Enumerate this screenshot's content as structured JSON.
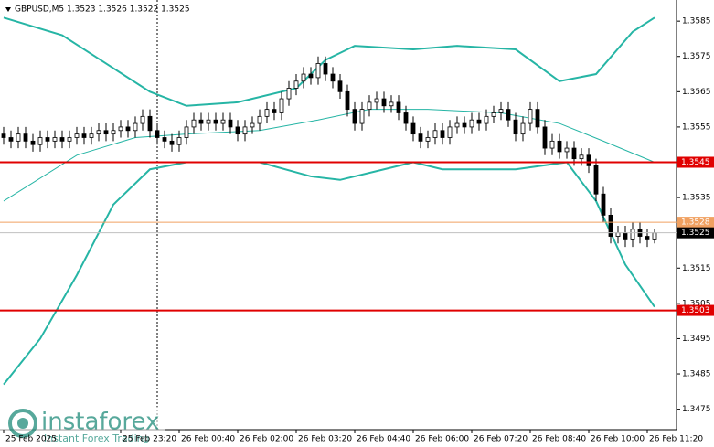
{
  "chart_data": {
    "type": "candlestick",
    "title": "GBPUSD,M5  1.3523 1.3526 1.3522 1.3525",
    "open": [
      1.3553,
      1.3552,
      1.3551,
      1.3553,
      1.3551,
      1.355,
      1.3552,
      1.3551,
      1.3552,
      1.3551,
      1.3552,
      1.3553,
      1.3552,
      1.3553,
      1.3554,
      1.3553,
      1.3554,
      1.3555,
      1.3554,
      1.3556,
      1.3558,
      1.3554,
      1.3552,
      1.3551,
      1.355,
      1.3552,
      1.3555,
      1.3557,
      1.3556,
      1.3557,
      1.3556,
      1.3557,
      1.3555,
      1.3553,
      1.3555,
      1.3556,
      1.3558,
      1.356,
      1.3559,
      1.3563,
      1.3566,
      1.3568,
      1.357,
      1.3569,
      1.3573,
      1.357,
      1.3568,
      1.3565,
      1.356,
      1.3556,
      1.356,
      1.3562,
      1.3563,
      1.3561,
      1.3562,
      1.3559,
      1.3556,
      1.3553,
      1.3551,
      1.3552,
      1.3554,
      1.3552,
      1.3555,
      1.3556,
      1.3555,
      1.3557,
      1.3556,
      1.3558,
      1.3559,
      1.356,
      1.3557,
      1.3553,
      1.3556,
      1.356,
      1.3555,
      1.3549,
      1.3551,
      1.3548,
      1.3549,
      1.3546,
      1.3547,
      1.3544,
      1.3536,
      1.353,
      1.3524,
      1.3525,
      1.3523,
      1.3526,
      1.3524,
      1.3523
    ],
    "high": [
      1.3555,
      1.3554,
      1.3555,
      1.3555,
      1.3553,
      1.3554,
      1.3554,
      1.3554,
      1.3554,
      1.3554,
      1.3555,
      1.3555,
      1.3555,
      1.3556,
      1.3556,
      1.3556,
      1.3557,
      1.3557,
      1.3558,
      1.356,
      1.356,
      1.3556,
      1.3554,
      1.3553,
      1.3554,
      1.3557,
      1.3559,
      1.3559,
      1.3559,
      1.3559,
      1.3559,
      1.3559,
      1.3557,
      1.3557,
      1.3558,
      1.356,
      1.3562,
      1.3562,
      1.3565,
      1.3568,
      1.357,
      1.3572,
      1.3572,
      1.3575,
      1.3575,
      1.3572,
      1.357,
      1.3567,
      1.3562,
      1.3562,
      1.3564,
      1.3565,
      1.3565,
      1.3564,
      1.3564,
      1.3561,
      1.3558,
      1.3555,
      1.3554,
      1.3556,
      1.3556,
      1.3557,
      1.3558,
      1.3558,
      1.3559,
      1.3559,
      1.356,
      1.3561,
      1.3562,
      1.3562,
      1.3559,
      1.3558,
      1.3562,
      1.3562,
      1.3557,
      1.3553,
      1.3553,
      1.3551,
      1.3551,
      1.3549,
      1.3549,
      1.3546,
      1.3538,
      1.3532,
      1.3527,
      1.3527,
      1.3528,
      1.3528,
      1.3526,
      1.3526
    ],
    "low": [
      1.355,
      1.3549,
      1.3549,
      1.3549,
      1.3548,
      1.3548,
      1.3549,
      1.3549,
      1.3549,
      1.3549,
      1.355,
      1.355,
      1.355,
      1.3551,
      1.3551,
      1.3551,
      1.3552,
      1.3552,
      1.3552,
      1.3554,
      1.3552,
      1.355,
      1.3549,
      1.3548,
      1.3548,
      1.355,
      1.3553,
      1.3554,
      1.3554,
      1.3554,
      1.3554,
      1.3553,
      1.3551,
      1.3551,
      1.3553,
      1.3554,
      1.3556,
      1.3557,
      1.3557,
      1.3561,
      1.3564,
      1.3566,
      1.3567,
      1.3567,
      1.3568,
      1.3566,
      1.3563,
      1.3558,
      1.3554,
      1.3554,
      1.3558,
      1.356,
      1.3559,
      1.3559,
      1.3557,
      1.3554,
      1.3551,
      1.3549,
      1.3549,
      1.355,
      1.355,
      1.355,
      1.3553,
      1.3553,
      1.3553,
      1.3554,
      1.3554,
      1.3556,
      1.3557,
      1.3555,
      1.3551,
      1.3551,
      1.3554,
      1.3553,
      1.3547,
      1.3547,
      1.3546,
      1.3546,
      1.3544,
      1.3544,
      1.3542,
      1.3534,
      1.3528,
      1.3522,
      1.3522,
      1.3521,
      1.3521,
      1.3522,
      1.3521,
      1.3522
    ],
    "close": [
      1.3552,
      1.3551,
      1.3553,
      1.3551,
      1.355,
      1.3552,
      1.3551,
      1.3552,
      1.3551,
      1.3552,
      1.3553,
      1.3552,
      1.3553,
      1.3554,
      1.3553,
      1.3554,
      1.3555,
      1.3554,
      1.3556,
      1.3558,
      1.3554,
      1.3552,
      1.3551,
      1.355,
      1.3552,
      1.3555,
      1.3557,
      1.3556,
      1.3557,
      1.3556,
      1.3557,
      1.3555,
      1.3553,
      1.3555,
      1.3556,
      1.3558,
      1.356,
      1.3559,
      1.3563,
      1.3566,
      1.3568,
      1.357,
      1.3569,
      1.3573,
      1.357,
      1.3568,
      1.3565,
      1.356,
      1.3556,
      1.356,
      1.3562,
      1.3563,
      1.3561,
      1.3562,
      1.3559,
      1.3556,
      1.3553,
      1.3551,
      1.3552,
      1.3554,
      1.3552,
      1.3555,
      1.3556,
      1.3555,
      1.3557,
      1.3556,
      1.3558,
      1.3559,
      1.356,
      1.3557,
      1.3553,
      1.3556,
      1.356,
      1.3555,
      1.3549,
      1.3551,
      1.3548,
      1.3549,
      1.3546,
      1.3547,
      1.3544,
      1.3536,
      1.353,
      1.3524,
      1.3525,
      1.3523,
      1.3526,
      1.3524,
      1.3523,
      1.3525
    ],
    "bands": [
      {
        "color": "#26b5a5",
        "x": [
          0,
          8,
          14,
          20,
          25,
          32,
          40,
          44,
          48,
          56,
          62,
          70,
          76,
          81,
          86,
          89
        ],
        "values": [
          1.3586,
          1.3581,
          1.3573,
          1.3565,
          1.3561,
          1.3562,
          1.3566,
          1.3574,
          1.3578,
          1.3577,
          1.3578,
          1.3577,
          1.3568,
          1.357,
          1.3582,
          1.3586
        ]
      },
      {
        "color": "#26b5a5",
        "x": [
          0,
          10,
          18,
          25,
          35,
          43,
          50,
          58,
          68,
          76,
          82,
          89
        ],
        "values": [
          1.3534,
          1.3547,
          1.3552,
          1.3553,
          1.3554,
          1.3557,
          1.356,
          1.356,
          1.3559,
          1.3556,
          1.3551,
          1.3545
        ]
      },
      {
        "color": "#26b5a5",
        "x": [
          0,
          5,
          10,
          15,
          20,
          25,
          35,
          42,
          46,
          52,
          56,
          60,
          70,
          77,
          81,
          85,
          89
        ],
        "values": [
          1.3482,
          1.3495,
          1.3513,
          1.3533,
          1.3543,
          1.3545,
          1.3545,
          1.3541,
          1.354,
          1.3543,
          1.3545,
          1.3543,
          1.3543,
          1.3545,
          1.3534,
          1.3516,
          1.3504
        ]
      }
    ],
    "levels": [
      {
        "value": 1.3545,
        "color": "#e00000"
      },
      {
        "value": 1.3528,
        "color": "#f0a060"
      },
      {
        "value": 1.3503,
        "color": "#e00000"
      }
    ],
    "last_price": 1.3525,
    "ylim": [
      1.34692,
      1.3591
    ],
    "yticks": [
      1.3585,
      1.3575,
      1.3565,
      1.3555,
      1.3545,
      1.3535,
      1.3525,
      1.3515,
      1.3505,
      1.3495,
      1.3485,
      1.3475
    ],
    "xticks": [
      {
        "value": 0,
        "label": "25 Feb 2025"
      },
      {
        "value": 16,
        "label": "25 Feb 23:20"
      },
      {
        "value": 24,
        "label": "26 Feb 00:40"
      },
      {
        "value": 32,
        "label": "26 Feb 02:00"
      },
      {
        "value": 40,
        "label": "26 Feb 03:20"
      },
      {
        "value": 48,
        "label": "26 Feb 04:40"
      },
      {
        "value": 56,
        "label": "26 Feb 06:00"
      },
      {
        "value": 64,
        "label": "26 Feb 07:20"
      },
      {
        "value": 72,
        "label": "26 Feb 08:40"
      },
      {
        "value": 80,
        "label": "26 Feb 10:00"
      },
      {
        "value": 88,
        "label": "26 Feb 11:20"
      }
    ],
    "watermark": {
      "brand": "instaforex",
      "tagline": "Instant Forex Trading"
    }
  }
}
